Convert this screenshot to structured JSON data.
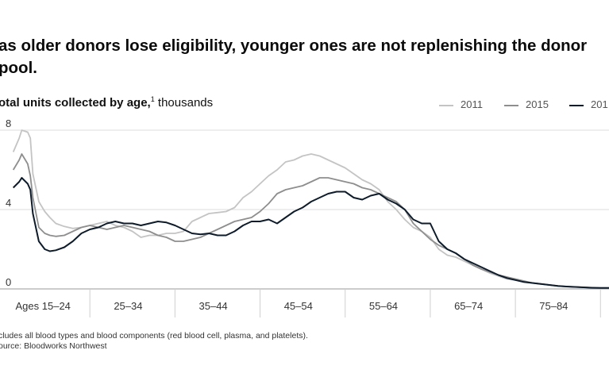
{
  "headline": "as older donors lose eligibility, younger ones are not replenishing the donor pool.",
  "subtitle": {
    "label": "otal units collected by age,",
    "footnote_marker": "1",
    "unit": "thousands"
  },
  "legend": [
    {
      "name": "2011",
      "color": "#c4c4c4"
    },
    {
      "name": "2015",
      "color": "#8e8e8e"
    },
    {
      "name": "201",
      "color": "#0d1b2a"
    }
  ],
  "footnotes": [
    "cludes all blood types and blood components (red blood cell, plasma, and platelets).",
    "ource: Bloodworks Northwest"
  ],
  "chart_data": {
    "type": "line",
    "title": "",
    "xlabel": "",
    "ylabel": "Total units collected by age, thousands",
    "ylim": [
      0,
      8
    ],
    "xlim": [
      15,
      86
    ],
    "y_ticks": [
      {
        "value": 0,
        "label": "0"
      },
      {
        "value": 4,
        "label": "4"
      },
      {
        "value": 8,
        "label": "8"
      }
    ],
    "x_ticks": [
      {
        "label": "Ages 15–24",
        "center": 19.5
      },
      {
        "label": "25–34",
        "center": 29.5
      },
      {
        "label": "35–44",
        "center": 39.5
      },
      {
        "label": "45–54",
        "center": 49.5
      },
      {
        "label": "55–64",
        "center": 59.5
      },
      {
        "label": "65–74",
        "center": 69.5
      },
      {
        "label": "75–84",
        "center": 79.5
      }
    ],
    "grid": "horizontal",
    "legend_position": "top-right",
    "series": [
      {
        "name": "2011",
        "color": "#c4c4c4",
        "x": [
          16,
          16.7,
          17,
          17.7,
          18,
          18.3,
          19,
          19.7,
          20.3,
          21,
          22,
          23,
          24,
          25,
          26,
          27,
          28,
          29,
          30,
          31,
          32,
          33,
          34,
          35,
          36,
          37,
          38,
          39,
          40,
          41,
          42,
          43,
          44,
          45,
          46,
          47,
          48,
          49,
          50,
          51,
          52,
          53,
          54,
          55,
          56,
          57,
          58,
          59,
          60,
          61,
          62,
          63,
          64,
          65,
          66,
          67,
          68,
          69,
          70,
          71,
          72,
          73,
          74,
          75,
          76,
          77,
          78,
          79,
          80,
          81,
          82,
          83,
          84,
          85,
          86
        ],
        "y": [
          6.9,
          7.6,
          8.0,
          7.9,
          7.6,
          5.8,
          4.4,
          3.9,
          3.6,
          3.3,
          3.15,
          3.05,
          3.1,
          3.2,
          3.3,
          3.4,
          3.2,
          3.1,
          2.9,
          2.6,
          2.7,
          2.7,
          2.8,
          2.8,
          2.9,
          3.4,
          3.6,
          3.8,
          3.85,
          3.9,
          4.1,
          4.6,
          4.9,
          5.3,
          5.7,
          6.0,
          6.4,
          6.5,
          6.7,
          6.8,
          6.7,
          6.5,
          6.3,
          6.1,
          5.8,
          5.5,
          5.3,
          5.0,
          4.4,
          4.0,
          3.5,
          3.1,
          2.9,
          2.6,
          2.0,
          1.7,
          1.6,
          1.4,
          1.2,
          1.0,
          0.8,
          0.65,
          0.5,
          0.45,
          0.35,
          0.3,
          0.25,
          0.2,
          0.15,
          0.12,
          0.1,
          0.08,
          0.06,
          0.05,
          0.05
        ]
      },
      {
        "name": "2015",
        "color": "#8e8e8e",
        "x": [
          16,
          16.7,
          17,
          17.7,
          18,
          18.3,
          19,
          19.7,
          20.3,
          21,
          22,
          23,
          24,
          25,
          26,
          27,
          28,
          29,
          30,
          31,
          32,
          33,
          34,
          35,
          36,
          37,
          38,
          39,
          40,
          41,
          42,
          43,
          44,
          45,
          46,
          47,
          48,
          49,
          50,
          51,
          52,
          53,
          54,
          55,
          56,
          57,
          58,
          59,
          60,
          61,
          62,
          63,
          64,
          65,
          66,
          67,
          68,
          69,
          70,
          71,
          72,
          73,
          74,
          75,
          76,
          77,
          78,
          79,
          80,
          81,
          82,
          83,
          84,
          85,
          86
        ],
        "y": [
          6.0,
          6.5,
          6.8,
          6.3,
          5.7,
          4.6,
          3.1,
          2.8,
          2.7,
          2.65,
          2.7,
          2.9,
          3.1,
          3.2,
          3.1,
          3.0,
          3.1,
          3.2,
          3.1,
          3.0,
          2.9,
          2.7,
          2.6,
          2.4,
          2.4,
          2.5,
          2.6,
          2.8,
          3.0,
          3.2,
          3.4,
          3.5,
          3.6,
          3.9,
          4.3,
          4.8,
          5.0,
          5.1,
          5.2,
          5.4,
          5.6,
          5.6,
          5.5,
          5.4,
          5.3,
          5.1,
          5.0,
          4.8,
          4.6,
          4.4,
          4.0,
          3.3,
          2.9,
          2.5,
          2.2,
          2.0,
          1.8,
          1.5,
          1.2,
          1.0,
          0.85,
          0.7,
          0.6,
          0.5,
          0.4,
          0.3,
          0.25,
          0.2,
          0.15,
          0.12,
          0.1,
          0.08,
          0.06,
          0.05,
          0.05
        ]
      },
      {
        "name": "201",
        "color": "#0d1b2a",
        "x": [
          16,
          16.7,
          17,
          17.7,
          18,
          18.3,
          19,
          19.7,
          20.3,
          21,
          22,
          23,
          24,
          25,
          26,
          27,
          28,
          29,
          30,
          31,
          32,
          33,
          34,
          35,
          36,
          37,
          38,
          39,
          40,
          41,
          42,
          43,
          44,
          45,
          46,
          47,
          48,
          49,
          50,
          51,
          52,
          53,
          54,
          55,
          56,
          57,
          58,
          59,
          60,
          61,
          62,
          63,
          64,
          65,
          66,
          67,
          68,
          69,
          70,
          71,
          72,
          73,
          74,
          75,
          76,
          77,
          78,
          79,
          80,
          81,
          82,
          83,
          84,
          85,
          86
        ],
        "y": [
          5.1,
          5.4,
          5.6,
          5.3,
          5.0,
          3.8,
          2.4,
          2.0,
          1.9,
          1.95,
          2.1,
          2.4,
          2.8,
          3.0,
          3.1,
          3.3,
          3.4,
          3.3,
          3.3,
          3.2,
          3.3,
          3.4,
          3.35,
          3.2,
          3.0,
          2.8,
          2.75,
          2.8,
          2.7,
          2.7,
          2.9,
          3.2,
          3.4,
          3.4,
          3.5,
          3.3,
          3.6,
          3.9,
          4.1,
          4.4,
          4.6,
          4.8,
          4.9,
          4.9,
          4.6,
          4.5,
          4.7,
          4.8,
          4.5,
          4.3,
          4.0,
          3.5,
          3.3,
          3.3,
          2.4,
          2.0,
          1.8,
          1.5,
          1.3,
          1.1,
          0.9,
          0.7,
          0.55,
          0.45,
          0.35,
          0.3,
          0.25,
          0.2,
          0.15,
          0.12,
          0.1,
          0.08,
          0.06,
          0.05,
          0.05
        ]
      }
    ]
  }
}
